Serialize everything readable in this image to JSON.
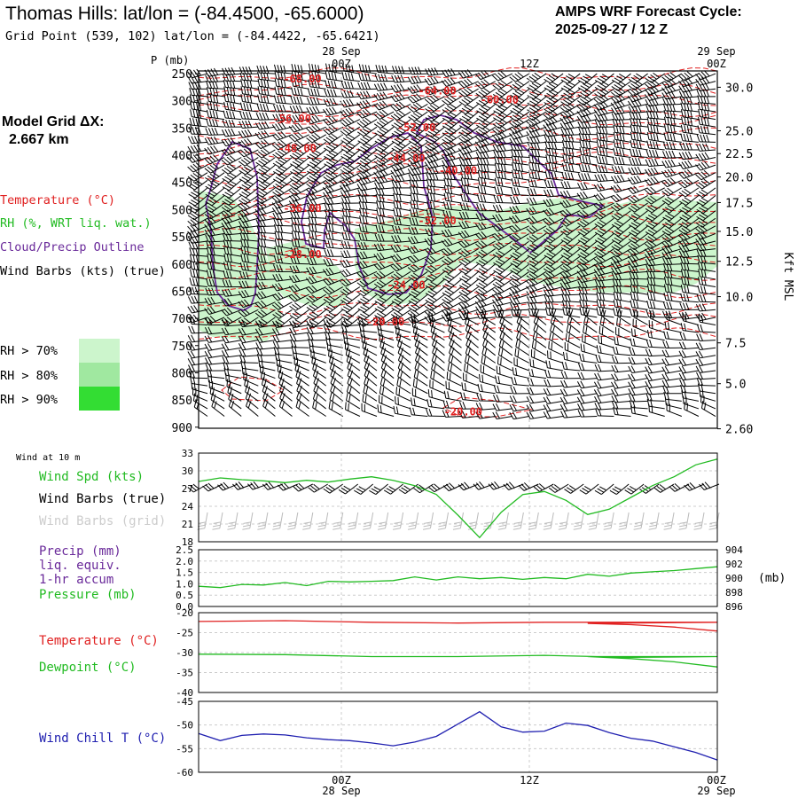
{
  "header": {
    "title": "Thomas Hills:  lat/lon = (-84.4500, -65.6000)",
    "subtitle": "Grid Point (539, 102) lat/lon = (-84.4422, -65.6421)",
    "cycle_title": "AMPS WRF Forecast Cycle:",
    "cycle_value": "2025-09-27 / 12  Z"
  },
  "model_grid": {
    "label": "Model Grid ΔX:",
    "value": "2.667 km"
  },
  "legend": {
    "temperature": "Temperature (°C)",
    "rh": "RH (%, WRT liq. wat.)",
    "cloud": "Cloud/Precip Outline",
    "wind": "Wind Barbs (kts) (true)",
    "rh70": "RH > 70%",
    "rh80": "RH > 80%",
    "rh90": "RH > 90%"
  },
  "colors": {
    "temperature": "#e02020",
    "rh": "#22bb22",
    "cloud": "#6a2a9a",
    "rh70": "#ccf5cc",
    "rh80": "#a0e8a0",
    "rh90": "#33dd33",
    "windchill": "#2020b0",
    "grid": "#bbbbbb"
  },
  "time_axis": {
    "top_dates": [
      "28 Sep",
      "29 Sep"
    ],
    "labels": [
      "00Z",
      "12Z",
      "00Z"
    ],
    "bottom_dates": [
      "28 Sep",
      "29 Sep"
    ]
  },
  "chart_data": [
    {
      "type": "contour",
      "name": "cross-section",
      "y_axis_label": "P (mb)",
      "right_axis_label": "Kft MSL",
      "pressure_ticks": [
        "250",
        "300",
        "350",
        "400",
        "450",
        "500",
        "550",
        "600",
        "650",
        "700",
        "750",
        "800",
        "850",
        "900"
      ],
      "height_ticks": [
        {
          "label": "30.0",
          "p": 275
        },
        {
          "label": "25.0",
          "p": 355
        },
        {
          "label": "22.5",
          "p": 397
        },
        {
          "label": "20.0",
          "p": 440
        },
        {
          "label": "17.5",
          "p": 487
        },
        {
          "label": "15.0",
          "p": 540
        },
        {
          "label": "12.5",
          "p": 595
        },
        {
          "label": "10.0",
          "p": 660
        },
        {
          "label": "7.5",
          "p": 745
        },
        {
          "label": "5.0",
          "p": 820
        },
        {
          "label": "2.60",
          "p": 903
        }
      ],
      "temperature_labels": [
        {
          "text": "-68.00",
          "t": 0.2,
          "p": 258
        },
        {
          "text": "-64.00",
          "t": 0.46,
          "p": 280
        },
        {
          "text": "-60.00",
          "t": 0.58,
          "p": 296
        },
        {
          "text": "-56.00",
          "t": 0.18,
          "p": 331
        },
        {
          "text": "-52.00",
          "t": 0.42,
          "p": 348
        },
        {
          "text": "-48.00",
          "t": 0.19,
          "p": 386
        },
        {
          "text": "-44.00",
          "t": 0.4,
          "p": 404
        },
        {
          "text": "-40.00",
          "t": 0.5,
          "p": 427
        },
        {
          "text": "-36.00",
          "t": 0.2,
          "p": 496
        },
        {
          "text": "-32.00",
          "t": 0.46,
          "p": 519
        },
        {
          "text": "-28.00",
          "t": 0.2,
          "p": 581
        },
        {
          "text": "-24.00",
          "t": 0.4,
          "p": 637
        },
        {
          "text": "-20.00",
          "t": 0.36,
          "p": 705
        },
        {
          "text": "-20.00",
          "t": 0.51,
          "p": 870
        }
      ]
    },
    {
      "type": "line",
      "name": "wind",
      "header": "Wind at 10 m",
      "labels": [
        "Wind Spd (kts)",
        "Wind Barbs (true)",
        "Wind Barbs (grid)"
      ],
      "y_ticks": [
        "33",
        "30",
        "27",
        "24",
        "21",
        "18"
      ],
      "ylim": [
        18,
        33
      ],
      "x": [
        0,
        1,
        2,
        3,
        4,
        5,
        6,
        7,
        8,
        9,
        10,
        11,
        12,
        13,
        14,
        15,
        16,
        17,
        18,
        19,
        20,
        21,
        22,
        23,
        24
      ],
      "values": [
        28.2,
        28.8,
        28.5,
        28.3,
        28.0,
        28.4,
        28.1,
        28.6,
        29.0,
        28.4,
        27.5,
        26.0,
        22.5,
        18.7,
        23.0,
        26.0,
        26.5,
        25.0,
        22.6,
        23.5,
        25.5,
        27.5,
        29.0,
        31.0,
        32.0
      ]
    },
    {
      "type": "line",
      "name": "pressure",
      "labels": [
        "Precip (mm)",
        "liq. equiv.",
        "1-hr accum",
        "Pressure (mb)"
      ],
      "left_ticks": [
        "2.5",
        "2.0",
        "1.5",
        "1.0",
        "0.5",
        "0.0"
      ],
      "right_ticks": [
        "904",
        "902",
        "900",
        "898",
        "896"
      ],
      "right_unit": "(mb)",
      "ylim": [
        895.5,
        904.5
      ],
      "x": [
        0,
        1,
        2,
        3,
        4,
        5,
        6,
        7,
        8,
        9,
        10,
        11,
        12,
        13,
        14,
        15,
        16,
        17,
        18,
        19,
        20,
        21,
        22,
        23,
        24
      ],
      "values": [
        898.7,
        898.5,
        899.0,
        898.9,
        899.3,
        898.8,
        899.5,
        899.4,
        899.5,
        899.6,
        900.2,
        899.7,
        900.2,
        899.9,
        900.1,
        899.8,
        900.1,
        899.9,
        900.6,
        900.3,
        900.8,
        901.0,
        901.2,
        901.5,
        901.8
      ]
    },
    {
      "type": "line",
      "name": "temperature",
      "labels": [
        "Temperature (°C)",
        "Dewpoint (°C)"
      ],
      "y_ticks": [
        "-20",
        "-25",
        "-30",
        "-35",
        "-40"
      ],
      "ylim": [
        -40,
        -20
      ],
      "x": [
        0,
        4,
        8,
        12,
        16,
        20,
        24
      ],
      "series": [
        {
          "name": "Temperature (°C)",
          "values": [
            -22.2,
            -22.0,
            -22.4,
            -22.6,
            -22.4,
            -22.4,
            -22.4
          ]
        },
        {
          "name": "Dewpoint (°C)",
          "values": [
            -30.4,
            -30.5,
            -31.0,
            -31.0,
            -30.7,
            -31.2,
            -31.0
          ]
        }
      ],
      "tail": {
        "x": [
          16,
          18,
          20,
          22,
          24
        ],
        "temperature": [
          -22.4,
          -22.7,
          -23.0,
          -23.6,
          -24.6
        ],
        "dewpoint": [
          -31.0,
          -31.0,
          -31.5,
          -32.3,
          -33.6
        ]
      }
    },
    {
      "type": "line",
      "name": "windchill",
      "labels": [
        "Wind Chill T (°C)"
      ],
      "y_ticks": [
        "-45",
        "-50",
        "-55",
        "-60"
      ],
      "ylim": [
        -60,
        -45
      ],
      "x": [
        0,
        1,
        2,
        3,
        4,
        5,
        6,
        7,
        8,
        9,
        10,
        11,
        12,
        13,
        14,
        15,
        16,
        17,
        18,
        19,
        20,
        21,
        22,
        23,
        24
      ],
      "values": [
        -51.8,
        -53.3,
        -52.2,
        -51.9,
        -52.1,
        -52.7,
        -53.1,
        -53.3,
        -53.8,
        -54.4,
        -53.6,
        -52.4,
        -49.8,
        -47.2,
        -50.4,
        -51.5,
        -51.3,
        -49.6,
        -50.1,
        -51.6,
        -52.8,
        -53.4,
        -54.6,
        -55.8,
        -57.4
      ]
    }
  ]
}
